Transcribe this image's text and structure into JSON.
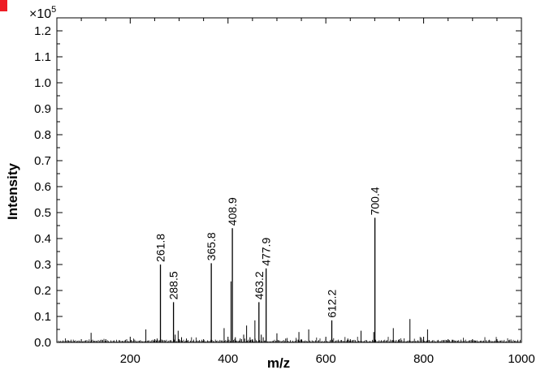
{
  "chart_data": {
    "type": "bar",
    "title": "",
    "xlabel": "m/z",
    "ylabel": "Intensity",
    "y_multiplier_base": "×10",
    "y_multiplier_exponent": "5",
    "xlim": [
      50,
      1000
    ],
    "ylim": [
      0,
      1.25
    ],
    "x_ticks": [
      200,
      400,
      600,
      800,
      1000
    ],
    "x_tick_labels": [
      "200",
      "400",
      "600",
      "800",
      "1000"
    ],
    "y_ticks": [
      0,
      0.1,
      0.2,
      0.3,
      0.4,
      0.5,
      0.6,
      0.7,
      0.8,
      0.9,
      1.0,
      1.1,
      1.2
    ],
    "y_tick_labels": [
      "0.0",
      "0.1",
      "0.2",
      "0.3",
      "0.4",
      "0.5",
      "0.6",
      "0.7",
      "0.8",
      "0.9",
      "1.0",
      "1.1",
      "1.2"
    ],
    "grid": false,
    "color": "#000000",
    "labeled_peaks": [
      {
        "x": 261.8,
        "y": 0.3,
        "label": "261.8"
      },
      {
        "x": 288.5,
        "y": 0.155,
        "label": "288.5"
      },
      {
        "x": 365.8,
        "y": 0.305,
        "label": "365.8"
      },
      {
        "x": 408.9,
        "y": 0.44,
        "label": "408.9"
      },
      {
        "x": 463.2,
        "y": 0.155,
        "label": "463.2"
      },
      {
        "x": 477.9,
        "y": 0.285,
        "label": "477.9"
      },
      {
        "x": 612.2,
        "y": 0.085,
        "label": "612.2"
      },
      {
        "x": 700.4,
        "y": 0.48,
        "label": "700.4"
      }
    ],
    "minor_peaks": [
      {
        "x": 120,
        "y": 0.037
      },
      {
        "x": 232,
        "y": 0.05
      },
      {
        "x": 255,
        "y": 0.015
      },
      {
        "x": 292,
        "y": 0.03
      },
      {
        "x": 298,
        "y": 0.045
      },
      {
        "x": 305,
        "y": 0.02
      },
      {
        "x": 315,
        "y": 0.015
      },
      {
        "x": 392,
        "y": 0.055
      },
      {
        "x": 406,
        "y": 0.235
      },
      {
        "x": 415,
        "y": 0.02
      },
      {
        "x": 425,
        "y": 0.015
      },
      {
        "x": 432,
        "y": 0.03
      },
      {
        "x": 438,
        "y": 0.065
      },
      {
        "x": 445,
        "y": 0.02
      },
      {
        "x": 455,
        "y": 0.085
      },
      {
        "x": 468,
        "y": 0.03
      },
      {
        "x": 472,
        "y": 0.02
      },
      {
        "x": 500,
        "y": 0.035
      },
      {
        "x": 518,
        "y": 0.015
      },
      {
        "x": 545,
        "y": 0.04
      },
      {
        "x": 565,
        "y": 0.05
      },
      {
        "x": 645,
        "y": 0.015
      },
      {
        "x": 672,
        "y": 0.045
      },
      {
        "x": 698,
        "y": 0.04
      },
      {
        "x": 738,
        "y": 0.055
      },
      {
        "x": 772,
        "y": 0.09
      },
      {
        "x": 808,
        "y": 0.05
      },
      {
        "x": 860,
        "y": 0.01
      },
      {
        "x": 905,
        "y": 0.008
      },
      {
        "x": 950,
        "y": 0.008
      }
    ]
  }
}
